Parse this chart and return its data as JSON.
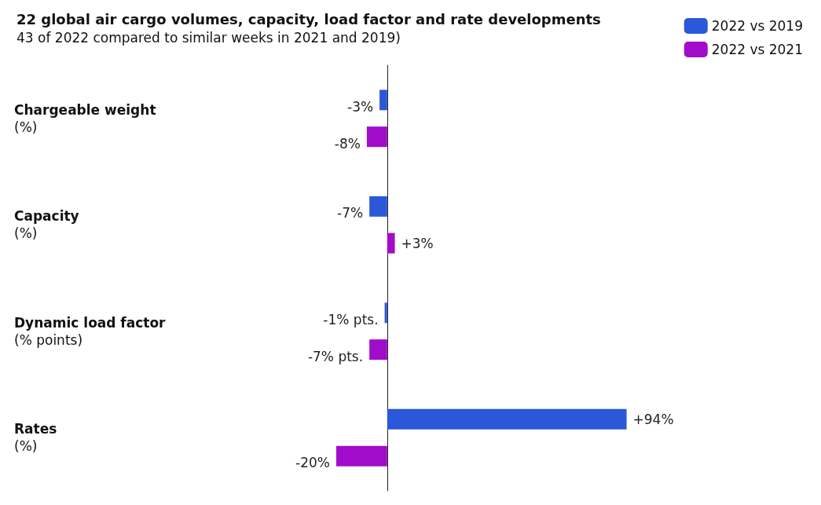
{
  "chart_data": {
    "type": "bar",
    "orientation": "horizontal",
    "title": "22 global air cargo volumes, capacity, load factor and rate developments",
    "subtitle": "43 of 2022 compared to similar weeks in 2021 and 2019)",
    "categories": [
      "Chargeable weight\n(%)",
      "Capacity\n(%)",
      "Dynamic load factor\n(% points)",
      "Rates\n(%)"
    ],
    "series": [
      {
        "name": "2022 vs 2019",
        "color": "#2b57d9",
        "values": [
          -3,
          -7,
          -1,
          94
        ],
        "value_labels": [
          "-3%",
          "-7%",
          "-1% pts.",
          "+94%"
        ]
      },
      {
        "name": "2022 vs 2021",
        "color": "#a10ccb",
        "values": [
          -8,
          3,
          -7,
          -20
        ],
        "value_labels": [
          "-8%",
          "+3%",
          "-7% pts.",
          "-20%"
        ]
      }
    ],
    "legend": "top right",
    "grid": false
  }
}
